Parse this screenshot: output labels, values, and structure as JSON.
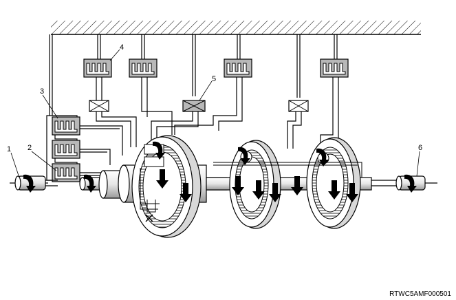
{
  "callouts": {
    "c1": "1",
    "c2": "2",
    "c3": "3",
    "c4": "4",
    "c5": "5",
    "c6": "6"
  },
  "reference_code": "RTWC5AMF000501",
  "colors": {
    "ink": "#000000",
    "gray_fill": "#b8b8b8",
    "light_fill": "#d8d8d8",
    "background": "#ffffff"
  }
}
